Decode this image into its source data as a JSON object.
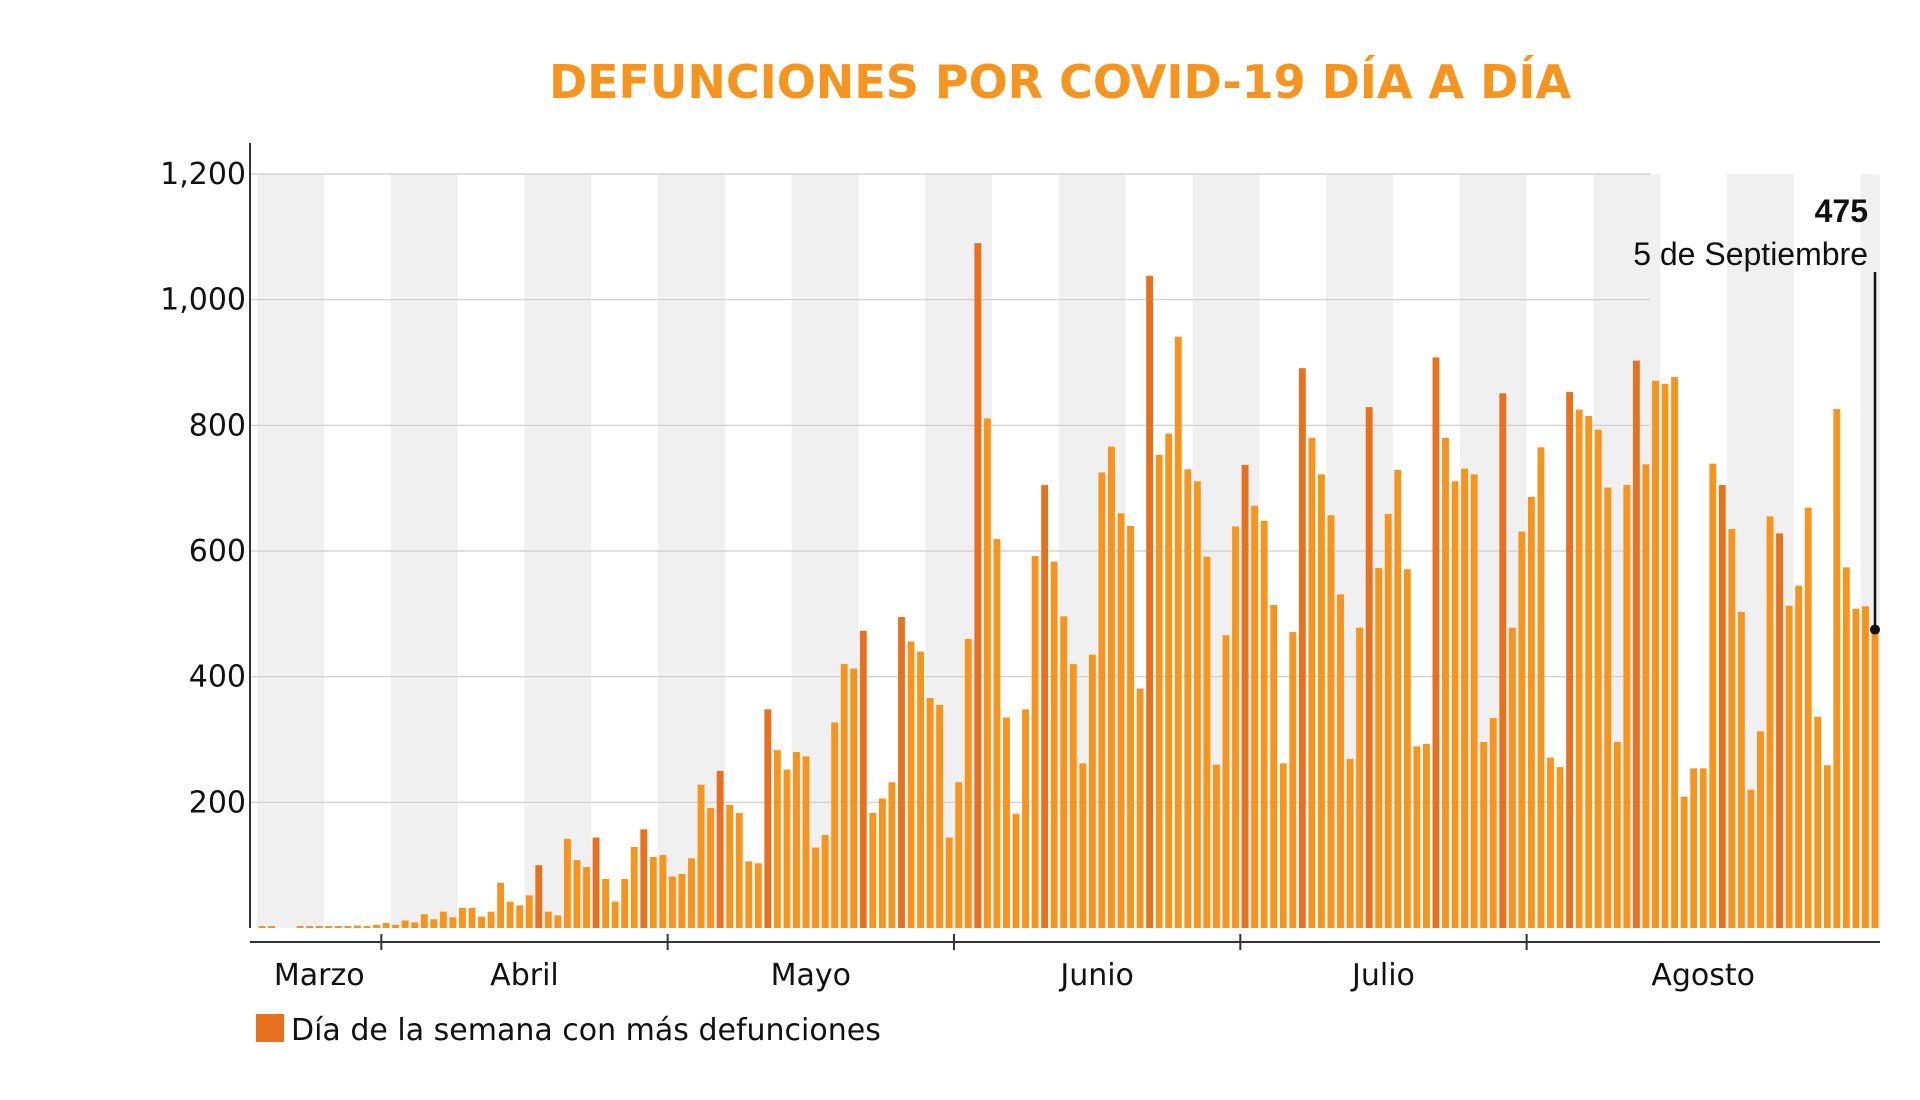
{
  "chart_data": {
    "type": "bar",
    "title": "DEFUNCIONES POR COVID-19 DÍA A DÍA",
    "ylim": [
      0,
      1200
    ],
    "yticks": [
      "200",
      "400",
      "600",
      "800",
      "1,000",
      "1,200"
    ],
    "ytick_values": [
      200,
      400,
      600,
      800,
      1000,
      1200
    ],
    "grid": true,
    "month_labels": [
      "Marzo",
      "Abril",
      "Mayo",
      "Junio",
      "Julio",
      "Agosto"
    ],
    "month_start_index": [
      0,
      13,
      43,
      73,
      103,
      133
    ],
    "series": [
      {
        "values": [
          1,
          1,
          0,
          0,
          1,
          1,
          1,
          1,
          1,
          1,
          4,
          2,
          5,
          8,
          5,
          12,
          9,
          22,
          14,
          26,
          17,
          32,
          32,
          18,
          26,
          72,
          42,
          36,
          52,
          100,
          26,
          20,
          142,
          108,
          97,
          144,
          78,
          42,
          78,
          129,
          157,
          113,
          116,
          82,
          86,
          111,
          228,
          191,
          250,
          196,
          183,
          106,
          103,
          348,
          283,
          252,
          280,
          273,
          128,
          148,
          327,
          420,
          413,
          473,
          183,
          206,
          232,
          495,
          456,
          440,
          366,
          355,
          144,
          232,
          460,
          1090,
          811,
          619,
          335,
          182,
          348,
          592,
          705,
          583,
          496,
          420,
          262,
          435,
          725,
          766,
          660,
          640,
          381,
          1038,
          753,
          787,
          941,
          730,
          711,
          591,
          260,
          466,
          639,
          737,
          672,
          648,
          514,
          262,
          471,
          891,
          780,
          722,
          657,
          531,
          269,
          478,
          829,
          573,
          659,
          729,
          571,
          289,
          293,
          908,
          780,
          711,
          731,
          722,
          296,
          334,
          851,
          478,
          631,
          686,
          765,
          271,
          256,
          853,
          825,
          815,
          793,
          701,
          296,
          705,
          903,
          738,
          871,
          866,
          877,
          209,
          254,
          254,
          739,
          705,
          635,
          503,
          220,
          313,
          655,
          628,
          513,
          545,
          669,
          336,
          259,
          826,
          574,
          508,
          512,
          475
        ],
        "peak_flags": [
          0,
          0,
          0,
          0,
          0,
          0,
          0,
          0,
          0,
          0,
          0,
          0,
          0,
          0,
          0,
          0,
          0,
          0,
          0,
          0,
          0,
          0,
          0,
          0,
          0,
          0,
          0,
          0,
          0,
          1,
          0,
          0,
          0,
          0,
          0,
          1,
          0,
          0,
          0,
          0,
          1,
          0,
          0,
          0,
          0,
          0,
          0,
          0,
          1,
          0,
          0,
          0,
          0,
          1,
          0,
          0,
          0,
          0,
          0,
          0,
          0,
          0,
          0,
          1,
          0,
          0,
          0,
          1,
          0,
          0,
          0,
          0,
          0,
          0,
          0,
          1,
          0,
          0,
          0,
          0,
          0,
          0,
          1,
          0,
          0,
          0,
          0,
          0,
          0,
          0,
          0,
          0,
          0,
          1,
          0,
          0,
          0,
          0,
          0,
          0,
          0,
          0,
          0,
          1,
          0,
          0,
          0,
          0,
          0,
          1,
          0,
          0,
          0,
          0,
          0,
          0,
          1,
          0,
          0,
          0,
          0,
          0,
          0,
          1,
          0,
          0,
          0,
          0,
          0,
          0,
          1,
          0,
          0,
          0,
          0,
          0,
          0,
          1,
          0,
          0,
          0,
          0,
          0,
          0,
          1,
          0,
          0,
          0,
          0,
          0,
          0,
          0,
          0,
          1,
          0,
          0,
          0,
          0,
          0,
          1,
          0,
          0,
          0,
          0,
          0,
          0,
          0,
          0,
          0,
          0,
          0
        ]
      }
    ],
    "colors": {
      "bar": "#f7941d",
      "peak": "#e8711f",
      "title": "#f7941d",
      "band": "#f0f0f0",
      "grid": "#cccccc",
      "axis": "#333333"
    },
    "annotation": {
      "value": "475",
      "date": "5 de Septiembre"
    },
    "legend": {
      "label": "Día de la semana con más defunciones",
      "color": "#e8711f"
    }
  }
}
